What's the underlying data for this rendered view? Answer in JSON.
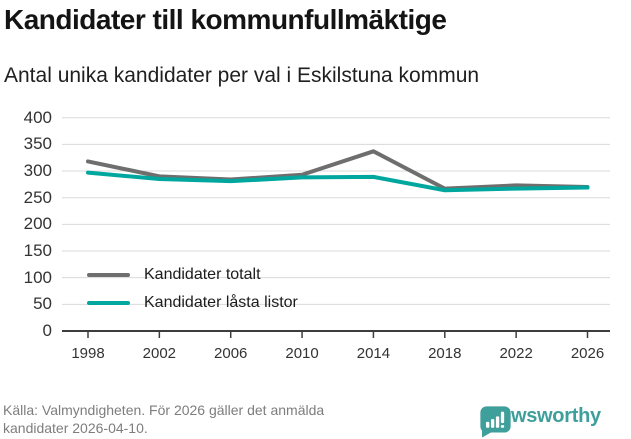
{
  "header": {
    "title": "Kandidater till kommunfullmäktige",
    "subtitle": "Antal unika kandidater per val i Eskilstuna kommun"
  },
  "chart_data": {
    "type": "line",
    "title": "Kandidater till kommunfullmäktige",
    "subtitle": "Antal unika kandidater per val i Eskilstuna kommun",
    "categories": [
      "1998",
      "2002",
      "2006",
      "2010",
      "2014",
      "2018",
      "2022",
      "2026"
    ],
    "series": [
      {
        "name": "Kandidater totalt",
        "color": "#6e6e6e",
        "values": [
          318,
          290,
          284,
          293,
          337,
          267,
          273,
          270
        ]
      },
      {
        "name": "Kandidater låsta listor",
        "color": "#00a79e",
        "values": [
          297,
          285,
          281,
          288,
          289,
          264,
          267,
          269
        ]
      }
    ],
    "ylim": [
      0,
      400
    ],
    "yticks": [
      0,
      50,
      100,
      150,
      200,
      250,
      300,
      350,
      400
    ],
    "grid": "horizontal-only",
    "legend_position": "inside-bottom-left",
    "xlabel": "",
    "ylabel": ""
  },
  "footer": {
    "source_line1": "Källa: Valmyndigheten. För 2026 gäller det anmälda",
    "source_line2": "kandidater 2026-04-10.",
    "brand_name": "Newsworthy"
  },
  "colors": {
    "accent_teal": "#00a79e",
    "series_gray": "#6e6e6e",
    "brand_teal": "#3f9f9b",
    "gridline": "#dadada",
    "axis": "#3d3d3d",
    "muted_text": "#7d7d7d"
  }
}
